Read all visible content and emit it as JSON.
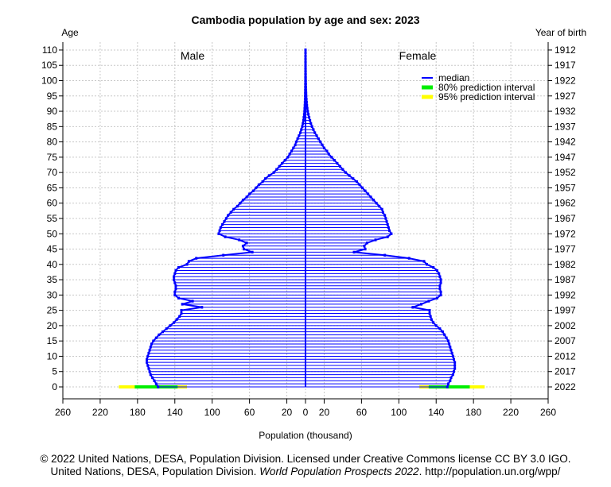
{
  "chart_data": {
    "type": "population-pyramid",
    "title": "Cambodia population by age and sex: 2023",
    "left_axis_label": "Age",
    "right_axis_label": "Year of birth",
    "xlabel": "Population (thousand)",
    "male_label": "Male",
    "female_label": "Female",
    "xlim": [
      -260,
      260
    ],
    "x_ticks": [
      -260,
      -220,
      -180,
      -140,
      -100,
      -60,
      -20,
      0,
      20,
      60,
      100,
      140,
      180,
      220,
      260
    ],
    "x_tick_labels": [
      "260",
      "220",
      "180",
      "140",
      "100",
      "60",
      "20",
      "0",
      "20",
      "60",
      "100",
      "140",
      "180",
      "220",
      "260"
    ],
    "age_ticks": [
      0,
      5,
      10,
      15,
      20,
      25,
      30,
      35,
      40,
      45,
      50,
      55,
      60,
      65,
      70,
      75,
      80,
      85,
      90,
      95,
      100,
      105,
      110
    ],
    "birth_year_labels": [
      "2022",
      "2017",
      "2012",
      "2007",
      "2002",
      "1997",
      "1992",
      "1987",
      "1982",
      "1977",
      "1972",
      "1967",
      "1962",
      "1957",
      "1952",
      "1947",
      "1942",
      "1937",
      "1932",
      "1927",
      "1922",
      "1917",
      "1912"
    ],
    "legend": {
      "position": "top-right",
      "entries": [
        {
          "label": "median",
          "color": "#0000ff"
        },
        {
          "label": "80% prediction interval",
          "color": "#00ee00"
        },
        {
          "label": "95% prediction interval",
          "color": "#ffff00"
        }
      ]
    },
    "colors": {
      "median": "#0000ff",
      "pi80": "#00ee00",
      "pi95": "#ffff00",
      "grid": "#c8c8c8"
    },
    "ages": [
      0,
      1,
      2,
      3,
      4,
      5,
      6,
      7,
      8,
      9,
      10,
      11,
      12,
      13,
      14,
      15,
      16,
      17,
      18,
      19,
      20,
      21,
      22,
      23,
      24,
      25,
      26,
      27,
      28,
      29,
      30,
      31,
      32,
      33,
      34,
      35,
      36,
      37,
      38,
      39,
      40,
      41,
      42,
      43,
      44,
      45,
      46,
      47,
      48,
      49,
      50,
      51,
      52,
      53,
      54,
      55,
      56,
      57,
      58,
      59,
      60,
      61,
      62,
      63,
      64,
      65,
      66,
      67,
      68,
      69,
      70,
      71,
      72,
      73,
      74,
      75,
      76,
      77,
      78,
      79,
      80,
      81,
      82,
      83,
      84,
      85,
      86,
      87,
      88,
      89,
      90,
      91,
      92,
      93,
      94,
      95,
      96,
      97,
      98,
      99,
      100,
      101,
      102,
      103,
      104,
      105,
      106,
      107,
      108,
      109,
      110
    ],
    "male": [
      158,
      160,
      162,
      164,
      166,
      167,
      168,
      169,
      170,
      170,
      169,
      168,
      167,
      166,
      165,
      163,
      160,
      157,
      153,
      149,
      145,
      141,
      138,
      135,
      133,
      133,
      111,
      132,
      121,
      136,
      140,
      140,
      139,
      139,
      140,
      141,
      141,
      140,
      139,
      136,
      127,
      125,
      117,
      88,
      57,
      66,
      67,
      63,
      71,
      86,
      93,
      92,
      91,
      89,
      87,
      85,
      83,
      80,
      77,
      73,
      70,
      67,
      63,
      60,
      56,
      53,
      50,
      46,
      43,
      39,
      34,
      31,
      28,
      25,
      22,
      19,
      17,
      15,
      13,
      11,
      10,
      8.5,
      7,
      5.5,
      4.5,
      3.5,
      2.8,
      2.2,
      1.8,
      1.4,
      1.1,
      0.9,
      0.7,
      0.55,
      0.45,
      0.35,
      0.3,
      0.25,
      0.2,
      0.15,
      0.12,
      0.1,
      0.08,
      0.06,
      0.05,
      0.04,
      0.03,
      0.02,
      0.02,
      0.01,
      0.01
    ],
    "female": [
      152,
      153,
      155,
      156,
      158,
      159,
      160,
      160,
      160,
      159,
      158,
      157,
      156,
      155,
      154,
      153,
      151,
      149,
      147,
      144,
      140,
      137,
      135,
      134,
      133,
      133,
      115,
      124,
      132,
      141,
      145,
      145,
      144,
      144,
      145,
      145,
      144,
      143,
      141,
      137,
      130,
      127,
      111,
      85,
      52,
      64,
      63,
      66,
      75,
      88,
      92,
      90,
      89,
      88,
      87,
      86,
      85,
      83,
      82,
      79,
      76,
      73,
      70,
      67,
      64,
      61,
      58,
      55,
      51,
      47,
      43,
      40,
      37,
      34,
      31,
      28,
      25,
      23,
      20,
      18,
      16,
      14,
      12,
      10,
      8.5,
      7,
      5.8,
      4.8,
      3.9,
      3.1,
      2.4,
      1.9,
      1.5,
      1.2,
      0.95,
      0.75,
      0.6,
      0.48,
      0.38,
      0.3,
      0.24,
      0.19,
      0.15,
      0.12,
      0.09,
      0.07,
      0.05,
      0.04,
      0.03,
      0.02,
      0.01
    ],
    "interval_age0": {
      "male": {
        "pi80": [
          137,
          183
        ],
        "pi95": [
          127,
          200
        ]
      },
      "female": {
        "pi80": [
          132,
          176
        ],
        "pi95": [
          122,
          192
        ]
      }
    }
  },
  "footer": {
    "line1": "© 2022 United Nations, DESA, Population Division. Licensed under Creative Commons license CC BY 3.0 IGO.",
    "line2_prefix": "United Nations, DESA, Population Division. ",
    "line2_italic": "World Population Prospects 2022",
    "line2_suffix": ". http://population.un.org/wpp/"
  }
}
